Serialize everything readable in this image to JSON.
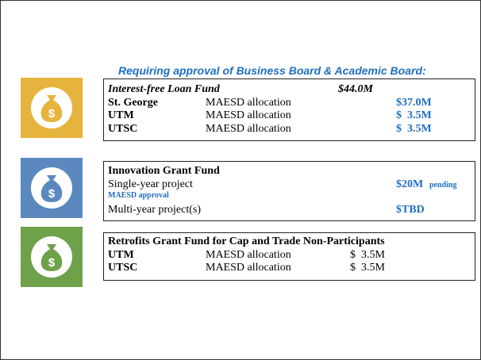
{
  "heading": "Requiring approval of Business Board & Academic Board:",
  "funds": [
    {
      "title": "Interest-free Loan Fund",
      "amount": "$44.0M",
      "rows": [
        {
          "campus": "St. George",
          "source": "MAESD allocation",
          "amount": "$37.0M"
        },
        {
          "campus": "UTM",
          "source": "MAESD allocation",
          "amount": "$  3.5M"
        },
        {
          "campus": "UTSC",
          "source": "MAESD allocation",
          "amount": "$  3.5M"
        }
      ]
    },
    {
      "title": "Innovation Grant Fund",
      "rows": [
        {
          "label": "Single-year project",
          "amount": "$20M",
          "note": "pending",
          "subnote": "MAESD approval"
        },
        {
          "label": "Multi-year project(s)",
          "amount": "$TBD"
        }
      ]
    },
    {
      "title": "Retrofits Grant Fund for Cap and Trade Non-Participants",
      "rows": [
        {
          "campus": "UTM",
          "source": "MAESD allocation",
          "amount": "$  3.5M"
        },
        {
          "campus": "UTSC",
          "source": "MAESD allocation",
          "amount": "$  3.5M"
        }
      ]
    }
  ]
}
